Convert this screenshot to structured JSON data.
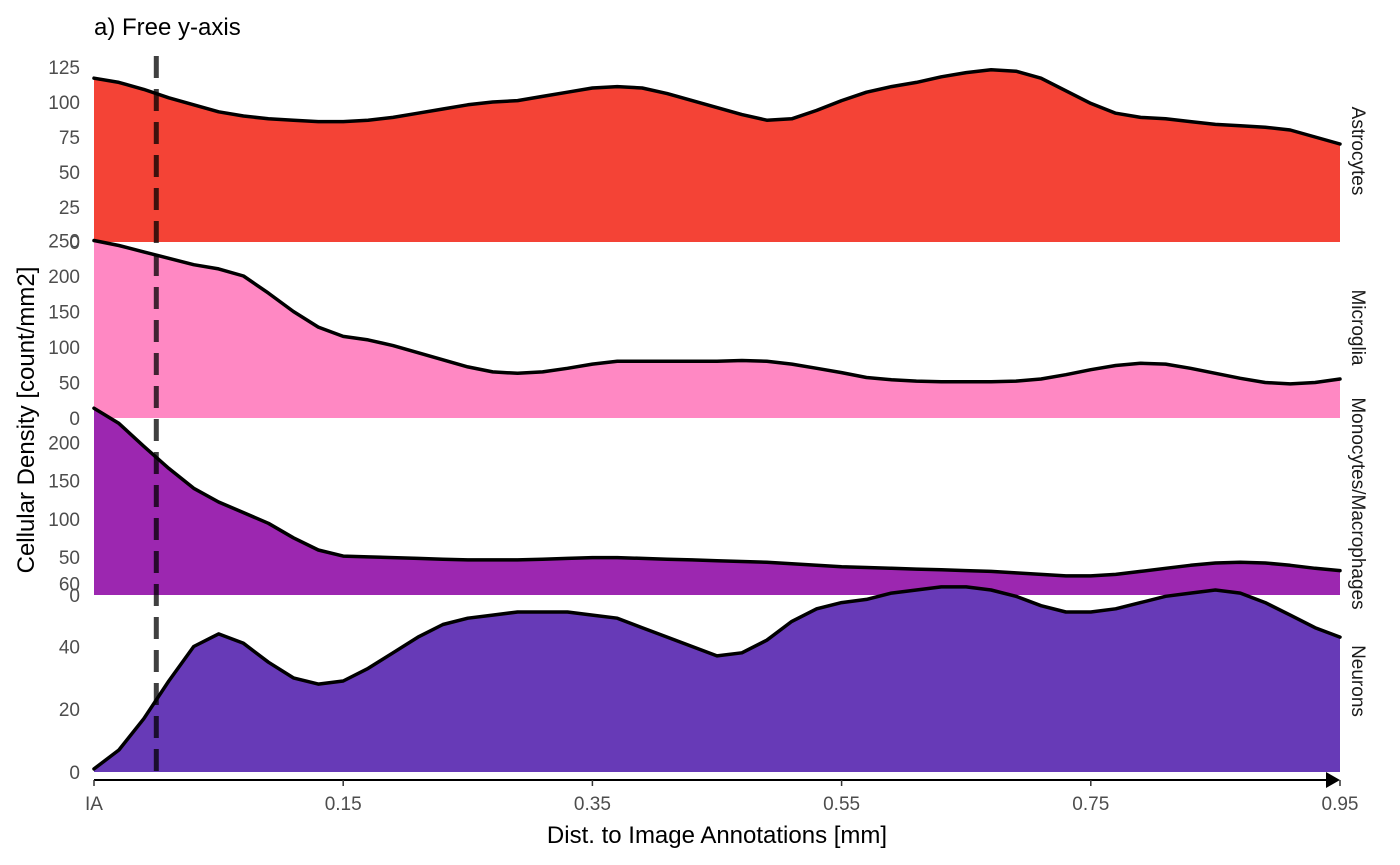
{
  "chart_data": {
    "type": "area",
    "title": "a) Free y-axis",
    "xlabel": "Dist. to Image Annotations [mm]",
    "ylabel": "Cellular Density [count/mm2]",
    "x_ticks": [
      {
        "value": -0.05,
        "label": "IA"
      },
      {
        "value": 0.15,
        "label": "0.15"
      },
      {
        "value": 0.35,
        "label": "0.35"
      },
      {
        "value": 0.55,
        "label": "0.55"
      },
      {
        "value": 0.75,
        "label": "0.75"
      },
      {
        "value": 0.95,
        "label": "0.95"
      }
    ],
    "xlim": [
      -0.05,
      0.95
    ],
    "annotation_line_x": 0.0,
    "grid": false,
    "series": [
      {
        "name": "Astrocytes",
        "color": "#F44336",
        "ylim": [
          0,
          130
        ],
        "yticks": [
          0,
          25,
          50,
          75,
          100,
          125
        ],
        "x": [
          -0.05,
          -0.03,
          -0.01,
          0.01,
          0.03,
          0.05,
          0.07,
          0.09,
          0.11,
          0.13,
          0.15,
          0.17,
          0.19,
          0.21,
          0.23,
          0.25,
          0.27,
          0.29,
          0.31,
          0.33,
          0.35,
          0.37,
          0.39,
          0.41,
          0.43,
          0.45,
          0.47,
          0.49,
          0.51,
          0.53,
          0.55,
          0.57,
          0.59,
          0.61,
          0.63,
          0.65,
          0.67,
          0.69,
          0.71,
          0.73,
          0.75,
          0.77,
          0.79,
          0.81,
          0.83,
          0.85,
          0.87,
          0.89,
          0.91,
          0.93,
          0.95
        ],
        "y": [
          117,
          114,
          109,
          103,
          98,
          93,
          90,
          88,
          87,
          86,
          86,
          87,
          89,
          92,
          95,
          98,
          100,
          101,
          104,
          107,
          110,
          111,
          110,
          106,
          101,
          96,
          91,
          87,
          88,
          94,
          101,
          107,
          111,
          114,
          118,
          121,
          123,
          122,
          117,
          108,
          99,
          92,
          89,
          88,
          86,
          84,
          83,
          82,
          80,
          75,
          70
        ]
      },
      {
        "name": "Microglia",
        "color": "#FF88C3",
        "ylim": [
          0,
          255
        ],
        "yticks": [
          0,
          50,
          100,
          150,
          200,
          250
        ],
        "x": [
          -0.05,
          -0.03,
          -0.01,
          0.01,
          0.03,
          0.05,
          0.07,
          0.09,
          0.11,
          0.13,
          0.15,
          0.17,
          0.19,
          0.21,
          0.23,
          0.25,
          0.27,
          0.29,
          0.31,
          0.33,
          0.35,
          0.37,
          0.39,
          0.41,
          0.43,
          0.45,
          0.47,
          0.49,
          0.51,
          0.53,
          0.55,
          0.57,
          0.59,
          0.61,
          0.63,
          0.65,
          0.67,
          0.69,
          0.71,
          0.73,
          0.75,
          0.77,
          0.79,
          0.81,
          0.83,
          0.85,
          0.87,
          0.89,
          0.91,
          0.93,
          0.95
        ],
        "y": [
          250,
          243,
          234,
          225,
          216,
          210,
          200,
          176,
          150,
          128,
          115,
          110,
          102,
          92,
          82,
          72,
          65,
          63,
          65,
          70,
          76,
          80,
          80,
          80,
          80,
          80,
          81,
          80,
          76,
          70,
          64,
          57,
          54,
          52,
          51,
          51,
          51,
          52,
          55,
          61,
          68,
          74,
          77,
          76,
          70,
          63,
          56,
          50,
          48,
          50,
          55
        ]
      },
      {
        "name": "Monocytes/Macrophages",
        "color": "#9C27B0",
        "ylim": [
          0,
          240
        ],
        "yticks": [
          0,
          50,
          100,
          150,
          200
        ],
        "x": [
          -0.05,
          -0.03,
          -0.01,
          0.01,
          0.03,
          0.05,
          0.07,
          0.09,
          0.11,
          0.13,
          0.15,
          0.17,
          0.19,
          0.21,
          0.23,
          0.25,
          0.27,
          0.29,
          0.31,
          0.33,
          0.35,
          0.37,
          0.39,
          0.41,
          0.43,
          0.45,
          0.47,
          0.49,
          0.51,
          0.53,
          0.55,
          0.57,
          0.59,
          0.61,
          0.63,
          0.65,
          0.67,
          0.69,
          0.71,
          0.73,
          0.75,
          0.77,
          0.79,
          0.81,
          0.83,
          0.85,
          0.87,
          0.89,
          0.91,
          0.93,
          0.95
        ],
        "y": [
          245,
          225,
          195,
          166,
          140,
          122,
          108,
          94,
          75,
          59,
          51,
          50,
          49,
          48,
          47,
          46,
          46,
          46,
          47,
          48,
          49,
          49,
          48,
          47,
          46,
          45,
          44,
          43,
          41,
          39,
          37,
          36,
          35,
          34,
          33,
          32,
          31,
          29,
          27,
          25,
          25,
          27,
          31,
          35,
          39,
          42,
          43,
          42,
          39,
          35,
          32
        ]
      },
      {
        "name": "Neurons",
        "color": "#673AB7",
        "ylim": [
          0,
          58
        ],
        "yticks": [
          0,
          20,
          40,
          60
        ],
        "x": [
          -0.05,
          -0.03,
          -0.01,
          0.01,
          0.03,
          0.05,
          0.07,
          0.09,
          0.11,
          0.13,
          0.15,
          0.17,
          0.19,
          0.21,
          0.23,
          0.25,
          0.27,
          0.29,
          0.31,
          0.33,
          0.35,
          0.37,
          0.39,
          0.41,
          0.43,
          0.45,
          0.47,
          0.49,
          0.51,
          0.53,
          0.55,
          0.57,
          0.59,
          0.61,
          0.63,
          0.65,
          0.67,
          0.69,
          0.71,
          0.73,
          0.75,
          0.77,
          0.79,
          0.81,
          0.83,
          0.85,
          0.87,
          0.89,
          0.91,
          0.93,
          0.95
        ],
        "y": [
          1,
          7,
          17,
          29,
          40,
          44,
          41,
          35,
          30,
          28,
          29,
          33,
          38,
          43,
          47,
          49,
          50,
          51,
          51,
          51,
          50,
          49,
          46,
          43,
          40,
          37,
          38,
          42,
          48,
          52,
          54,
          55,
          57,
          58,
          59,
          59,
          58,
          56,
          53,
          51,
          51,
          52,
          54,
          56,
          57,
          58,
          57,
          54,
          50,
          46,
          43
        ]
      }
    ]
  }
}
